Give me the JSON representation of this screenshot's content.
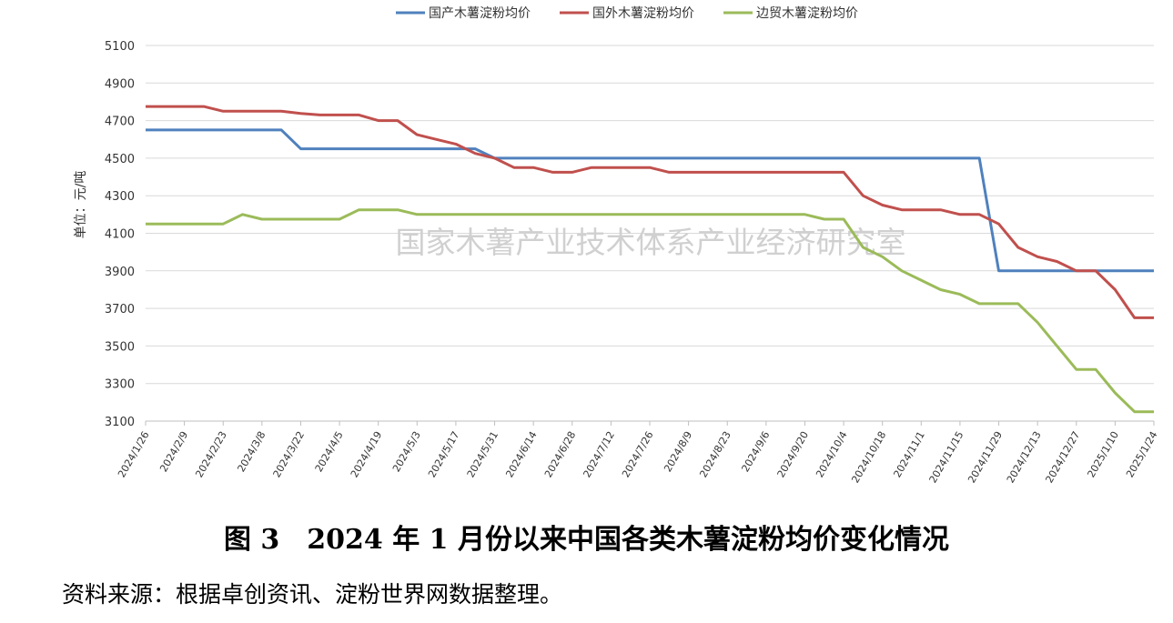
{
  "chart_data": {
    "type": "line",
    "ylabel": "单位：元/吨",
    "ylim": [
      3100,
      5100
    ],
    "yticks": [
      3100,
      3300,
      3500,
      3700,
      3900,
      4100,
      4300,
      4500,
      4700,
      4900,
      5100
    ],
    "grid": true,
    "legend_position": "top",
    "watermark": "国家木薯产业技术体系产业经济研究室",
    "x": [
      "2024/1/26",
      "2024/2/2",
      "2024/2/9",
      "2024/2/16",
      "2024/2/23",
      "2024/3/1",
      "2024/3/8",
      "2024/3/15",
      "2024/3/22",
      "2024/3/29",
      "2024/4/5",
      "2024/4/12",
      "2024/4/19",
      "2024/4/26",
      "2024/5/3",
      "2024/5/10",
      "2024/5/17",
      "2024/5/24",
      "2024/5/31",
      "2024/6/7",
      "2024/6/14",
      "2024/6/21",
      "2024/6/28",
      "2024/7/5",
      "2024/7/12",
      "2024/7/19",
      "2024/7/26",
      "2024/8/2",
      "2024/8/9",
      "2024/8/16",
      "2024/8/23",
      "2024/8/30",
      "2024/9/6",
      "2024/9/13",
      "2024/9/20",
      "2024/9/27",
      "2024/10/4",
      "2024/10/11",
      "2024/10/18",
      "2024/10/25",
      "2024/11/1",
      "2024/11/8",
      "2024/11/15",
      "2024/11/22",
      "2024/11/29",
      "2024/12/6",
      "2024/12/13",
      "2024/12/20",
      "2024/12/27",
      "2025/1/3",
      "2025/1/10",
      "2025/1/17",
      "2025/1/24"
    ],
    "tick_labels": [
      "2024/1/26",
      "2024/2/9",
      "2024/2/23",
      "2024/3/8",
      "2024/3/22",
      "2024/4/5",
      "2024/4/19",
      "2024/5/3",
      "2024/5/17",
      "2024/5/31",
      "2024/6/14",
      "2024/6/28",
      "2024/7/12",
      "2024/7/26",
      "2024/8/9",
      "2024/8/23",
      "2024/9/6",
      "2024/9/20",
      "2024/10/4",
      "2024/10/18",
      "2024/11/1",
      "2024/11/15",
      "2024/11/29",
      "2024/12/13",
      "2024/12/27",
      "2025/1/10",
      "2025/1/24"
    ],
    "series": [
      {
        "name": "国产木薯淀粉均价",
        "color": "#4f81bd",
        "values": [
          4650,
          4650,
          4650,
          4650,
          4650,
          4650,
          4650,
          4650,
          4550,
          4550,
          4550,
          4550,
          4550,
          4550,
          4550,
          4550,
          4550,
          4550,
          4500,
          4500,
          4500,
          4500,
          4500,
          4500,
          4500,
          4500,
          4500,
          4500,
          4500,
          4500,
          4500,
          4500,
          4500,
          4500,
          4500,
          4500,
          4500,
          4500,
          4500,
          4500,
          4500,
          4500,
          4500,
          4500,
          3900,
          3900,
          3900,
          3900,
          3900,
          3900,
          3900,
          3900,
          3900
        ]
      },
      {
        "name": "国外木薯淀粉均价",
        "color": "#c0504d",
        "values": [
          4775,
          4775,
          4775,
          4775,
          4750,
          4750,
          4750,
          4750,
          4738,
          4730,
          4730,
          4730,
          4700,
          4700,
          4625,
          4600,
          4575,
          4525,
          4500,
          4450,
          4450,
          4425,
          4425,
          4450,
          4450,
          4450,
          4450,
          4425,
          4425,
          4425,
          4425,
          4425,
          4425,
          4425,
          4425,
          4425,
          4425,
          4300,
          4250,
          4225,
          4225,
          4225,
          4200,
          4200,
          4150,
          4025,
          3975,
          3950,
          3900,
          3900,
          3800,
          3650,
          3650
        ]
      },
      {
        "name": "边贸木薯淀粉均价",
        "color": "#9bbb59",
        "values": [
          4150,
          4150,
          4150,
          4150,
          4150,
          4200,
          4175,
          4175,
          4175,
          4175,
          4175,
          4225,
          4225,
          4225,
          4200,
          4200,
          4200,
          4200,
          4200,
          4200,
          4200,
          4200,
          4200,
          4200,
          4200,
          4200,
          4200,
          4200,
          4200,
          4200,
          4200,
          4200,
          4200,
          4200,
          4200,
          4175,
          4175,
          4025,
          3975,
          3900,
          3850,
          3800,
          3775,
          3725,
          3725,
          3725,
          3625,
          3500,
          3375,
          3375,
          3250,
          3150,
          3150
        ]
      }
    ]
  },
  "caption": "图 3　2024 年 1 月份以来中国各类木薯淀粉均价变化情况",
  "source_note": "资料来源：根据卓创资讯、淀粉世界网数据整理。"
}
